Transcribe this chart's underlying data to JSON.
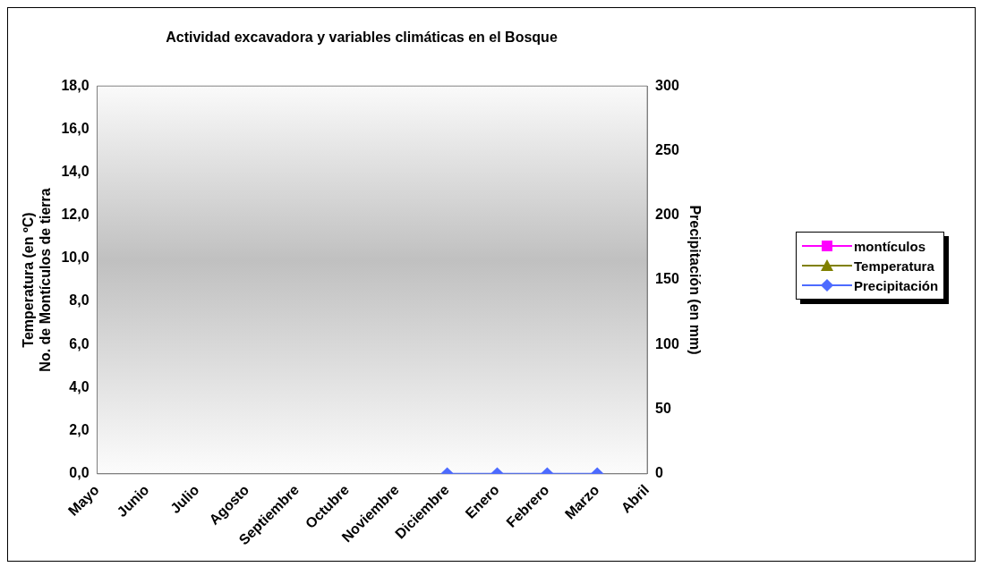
{
  "chart_data": {
    "type": "line",
    "title": "Actividad excavadora y variables climáticas en el Bosque",
    "categories": [
      "Mayo",
      "Junio",
      "Julio",
      "Agosto",
      "Septiembre",
      "Octubre",
      "Noviembre",
      "Diciembre",
      "Enero",
      "Febrero",
      "Marzo",
      "Abril"
    ],
    "ylabel": "Temperatura (en ºC)\nNo. de Montículos de tierra",
    "y2label": "Precipitación (en mm)",
    "ylim": [
      0,
      18
    ],
    "yticks": [
      {
        "value": 0,
        "label": "0,0"
      },
      {
        "value": 2,
        "label": "2,0"
      },
      {
        "value": 4,
        "label": "4,0"
      },
      {
        "value": 6,
        "label": "6,0"
      },
      {
        "value": 8,
        "label": "8,0"
      },
      {
        "value": 10,
        "label": "10,0"
      },
      {
        "value": 12,
        "label": "12,0"
      },
      {
        "value": 14,
        "label": "14,0"
      },
      {
        "value": 16,
        "label": "16,0"
      },
      {
        "value": 18,
        "label": "18,0"
      }
    ],
    "y2lim": [
      0,
      300
    ],
    "y2ticks": [
      0,
      50,
      100,
      150,
      200,
      250,
      300
    ],
    "grid": false,
    "legend": "right",
    "series": [
      {
        "name": "montículos",
        "color": "#ff00ff",
        "marker": "square",
        "values": [
          null,
          null,
          null,
          null,
          null,
          null,
          null,
          null,
          null,
          null,
          null,
          null
        ]
      },
      {
        "name": "Temperatura",
        "color": "#808000",
        "marker": "triangle",
        "values": [
          null,
          null,
          null,
          null,
          null,
          null,
          null,
          null,
          null,
          null,
          null,
          null
        ]
      },
      {
        "name": "Precipitación",
        "color": "#4d6bff",
        "marker": "diamond",
        "axis": "y2",
        "values": [
          null,
          null,
          null,
          null,
          null,
          null,
          null,
          0,
          0,
          0,
          0,
          null
        ]
      }
    ]
  }
}
